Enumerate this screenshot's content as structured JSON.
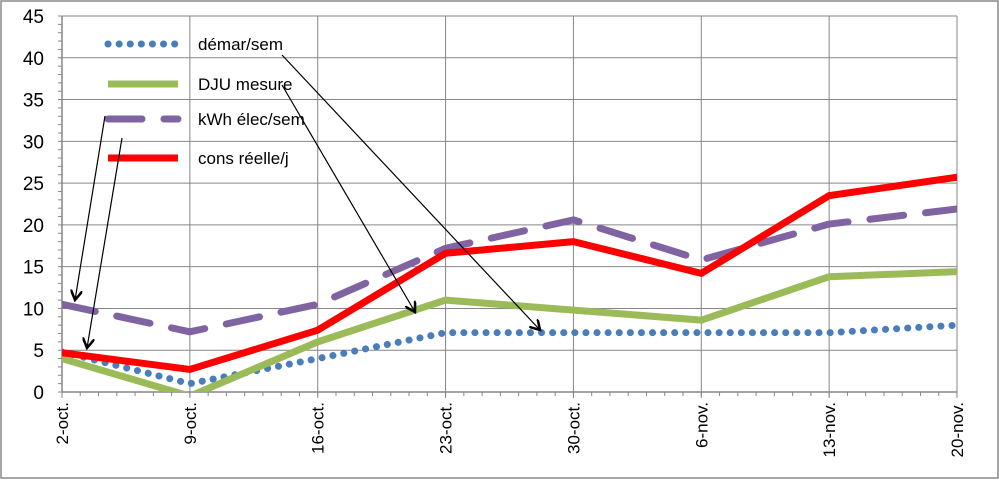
{
  "chart_data": {
    "type": "line",
    "title": "",
    "xlabel": "",
    "ylabel": "",
    "categories": [
      "2-oct.",
      "9-oct.",
      "16-oct.",
      "23-oct.",
      "30-oct.",
      "6-nov.",
      "13-nov.",
      "20-nov."
    ],
    "ylim": [
      0,
      45
    ],
    "yticks": [
      0,
      5,
      10,
      15,
      20,
      25,
      30,
      35,
      40,
      45
    ],
    "grid": true,
    "legend_position": "top-left",
    "series": [
      {
        "name": "démar/sem",
        "style": "dotted",
        "color": "#4a7ebb",
        "values": [
          4.8,
          1.0,
          4.0,
          7.1,
          7.1,
          7.1,
          7.1,
          8.0
        ]
      },
      {
        "name": "DJU mesure",
        "style": "solid",
        "color": "#9bbb59",
        "values": [
          4.0,
          -0.5,
          6.0,
          11.0,
          9.8,
          8.6,
          13.8,
          14.4
        ]
      },
      {
        "name": "kWh élec/sem",
        "style": "dashed",
        "color": "#8064a2",
        "values": [
          10.5,
          7.2,
          10.5,
          17.2,
          20.6,
          15.8,
          20.1,
          21.9
        ]
      },
      {
        "name": "cons réelle/j",
        "style": "solid",
        "color": "#ff0000",
        "values": [
          4.7,
          2.7,
          7.4,
          16.6,
          18.0,
          14.2,
          23.5,
          25.7
        ]
      }
    ]
  }
}
